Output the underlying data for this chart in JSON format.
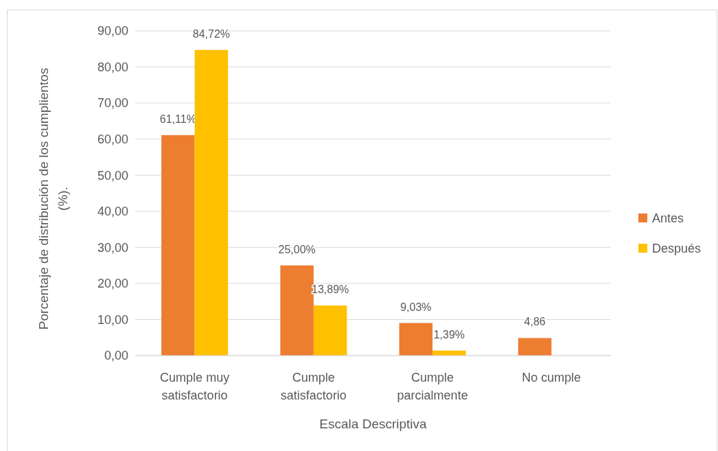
{
  "chart_data": {
    "type": "bar",
    "xlabel": "Escala Descriptiva",
    "ylabel": "Porcentaje de distribución de los cumplientos (%).",
    "categories": [
      "Cumple muy satisfactorio",
      "Cumple satisfactorio",
      "Cumple parcialmente",
      "No cumple"
    ],
    "series": [
      {
        "name": "Antes",
        "color": "#ed7d31",
        "values": [
          61.11,
          25.0,
          9.03,
          4.86
        ],
        "value_labels": [
          "61,11%",
          "25,00%",
          "9,03%",
          "4,86"
        ]
      },
      {
        "name": "Después",
        "color": "#ffc000",
        "values": [
          84.72,
          13.89,
          1.39,
          null
        ],
        "value_labels": [
          "84,72%",
          "13,89%",
          "1,39%",
          null
        ]
      }
    ],
    "ylim": [
      0,
      90
    ],
    "yticks": [
      {
        "value": 0,
        "label": "0,00"
      },
      {
        "value": 10,
        "label": "10,00"
      },
      {
        "value": 20,
        "label": "20,00"
      },
      {
        "value": 30,
        "label": "30,00"
      },
      {
        "value": 40,
        "label": "40,00"
      },
      {
        "value": 50,
        "label": "50,00"
      },
      {
        "value": 60,
        "label": "60,00"
      },
      {
        "value": 70,
        "label": "70,00"
      },
      {
        "value": 80,
        "label": "80,00"
      },
      {
        "value": 90,
        "label": "90,00"
      }
    ],
    "grid": "y",
    "legend": "right"
  }
}
